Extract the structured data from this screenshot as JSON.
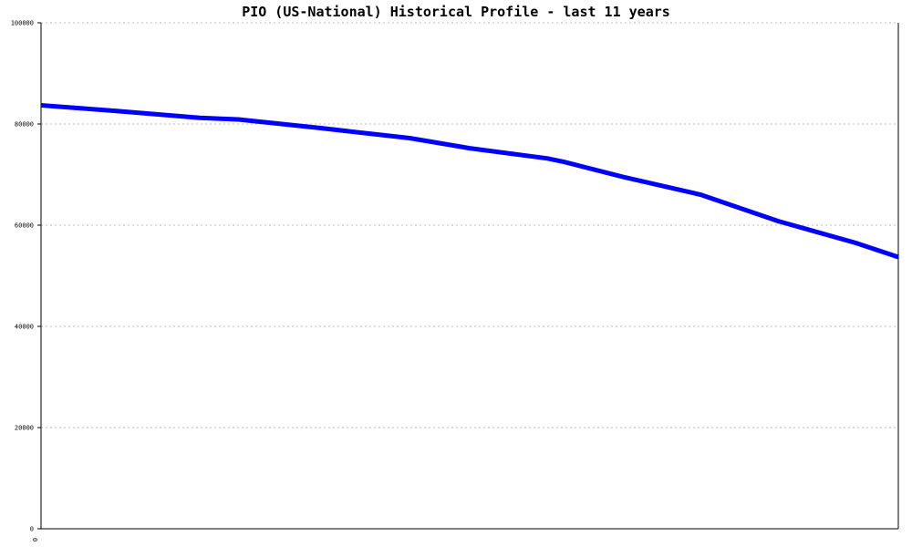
{
  "chart_data": {
    "type": "line",
    "title": "PIO (US-National) Historical Profile - last 11 years",
    "xlabel": "",
    "ylabel": "",
    "x_tick_labels": [
      "0"
    ],
    "y_tick_labels": [
      "0",
      "20000",
      "40000",
      "60000",
      "80000",
      "100000"
    ],
    "y_ticks": [
      0,
      20000,
      40000,
      60000,
      80000,
      100000
    ],
    "ylim": [
      0,
      100000
    ],
    "xlim": [
      0,
      1
    ],
    "grid": true,
    "legend": "none",
    "series": [
      {
        "x": [
          0,
          0.093,
          0.185,
          0.23,
          0.325,
          0.43,
          0.5,
          0.61,
          0.59,
          0.68,
          0.77,
          0.86,
          0.95,
          1.0
        ],
        "values": [
          83700,
          82500,
          81200,
          80900,
          79200,
          77200,
          75200,
          72500,
          73200,
          69500,
          66000,
          60800,
          56500,
          53700
        ],
        "color": "#0000ff"
      }
    ]
  },
  "colors": {
    "line": "#0000ff",
    "grid": "#bbbbbb",
    "axis": "#000000",
    "background": "#ffffff"
  }
}
